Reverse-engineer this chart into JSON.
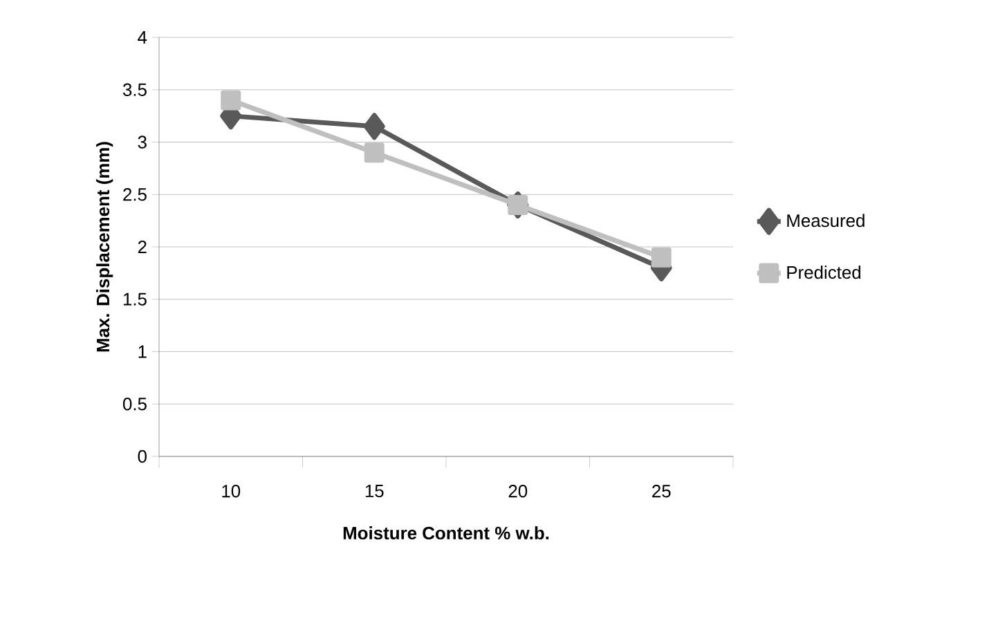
{
  "chart_data": {
    "type": "line",
    "xlabel": "Moisture Content % w.b.",
    "ylabel": "Max. Displacement (mm)",
    "categories": [
      "10",
      "15",
      "20",
      "25"
    ],
    "series": [
      {
        "name": "Measured",
        "color": "#595959",
        "marker": "diamond",
        "values": [
          3.25,
          3.15,
          2.4,
          1.8
        ]
      },
      {
        "name": "Predicted",
        "color": "#bfbfbf",
        "marker": "square",
        "values": [
          3.4,
          2.9,
          2.4,
          1.9
        ]
      }
    ],
    "ylim": [
      0,
      4
    ],
    "yticks": [
      0,
      0.5,
      1,
      1.5,
      2,
      2.5,
      3,
      3.5,
      4
    ],
    "grid": "y",
    "legend": "right"
  }
}
